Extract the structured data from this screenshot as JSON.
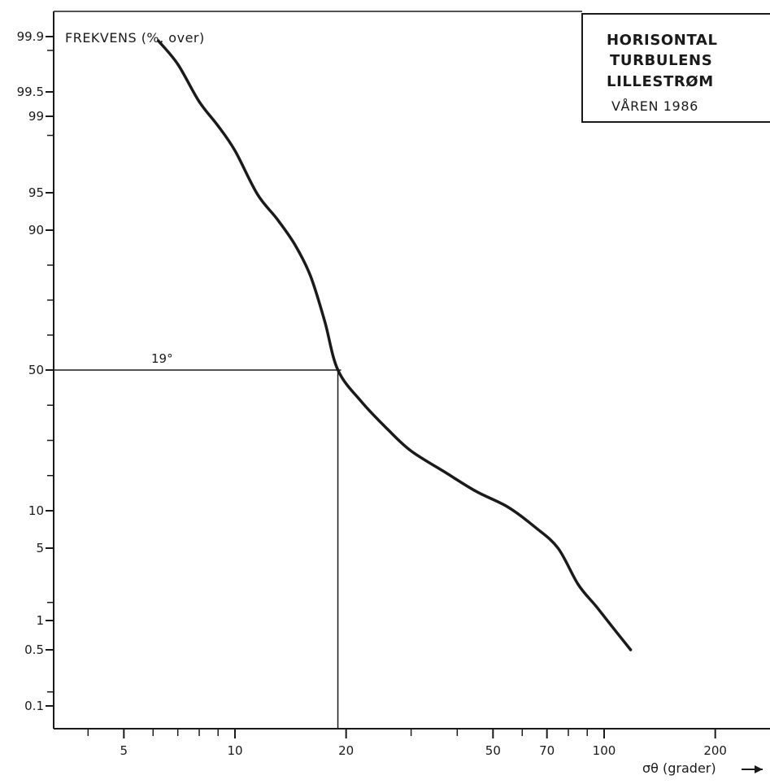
{
  "chart_data": {
    "type": "line",
    "title_lines": [
      "HORISONTAL",
      "TURBULENS",
      "LILLESTRØM",
      "VÅREN 1986"
    ],
    "ylabel": "FREKVENS (%, over)",
    "xlabel": "σθ (grader)",
    "x_scale": "log",
    "y_scale": "probability",
    "xlim": [
      3,
      250
    ],
    "y_ticks": [
      99.9,
      99.5,
      99,
      95,
      90,
      50,
      10,
      5,
      1,
      0.5,
      0.1
    ],
    "y_tick_labels": [
      "99.9",
      "99.5",
      "99",
      "95",
      "90",
      "50",
      "10",
      "5",
      "1",
      "0.5",
      "0.1"
    ],
    "x_ticks": [
      5,
      10,
      20,
      50,
      70,
      100,
      200
    ],
    "x_tick_labels": [
      "5",
      "10",
      "20",
      "50",
      "70",
      "100",
      "200"
    ],
    "x": [
      6.2,
      7.0,
      8.0,
      9.0,
      10.0,
      11.5,
      13.0,
      14.5,
      16.0,
      17.5,
      19.0,
      22.0,
      26.0,
      30.0,
      37.0,
      45.0,
      55.0,
      65.0,
      75.0,
      85.0,
      95.0,
      105.0,
      118.0
    ],
    "y": [
      99.87,
      99.7,
      99.3,
      98.5,
      97.2,
      94.8,
      91.5,
      86.0,
      77.0,
      64.0,
      50.0,
      41.0,
      33.0,
      27.0,
      21.0,
      15.5,
      11.0,
      7.8,
      5.0,
      3.0,
      1.8,
      0.9,
      0.5
    ],
    "annotation": {
      "label": "19°",
      "x": 19,
      "y": 50
    }
  }
}
